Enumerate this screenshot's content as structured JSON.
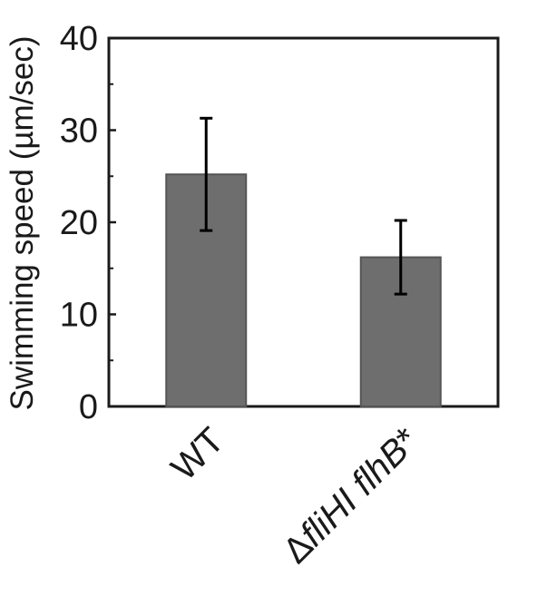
{
  "chart_data": {
    "type": "bar",
    "categories": [
      "WT",
      "ΔfliHI flhB*"
    ],
    "category_parts": [
      [
        {
          "text": "WT",
          "italic": false
        }
      ],
      [
        {
          "text": "Δ",
          "italic": false
        },
        {
          "text": "fliHI flhB",
          "italic": true
        },
        {
          "text": "*",
          "italic": false
        }
      ]
    ],
    "values": [
      25.2,
      16.2
    ],
    "error": [
      6.1,
      4.0
    ],
    "ylabel": "Swimming speed (µm/sec)",
    "ylim": [
      0,
      40
    ],
    "yticks": [
      0,
      10,
      20,
      30,
      40
    ],
    "grid": false,
    "bar_color": "#6e6e6e",
    "bar_edge_color": "#555555"
  }
}
